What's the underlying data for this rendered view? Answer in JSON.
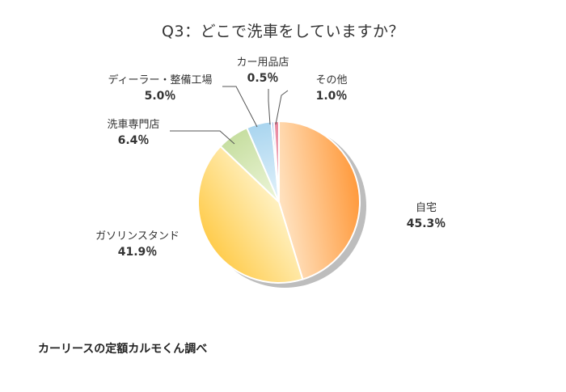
{
  "chart_data": {
    "type": "pie",
    "title": "Q3：どこで洗車をしていますか？",
    "slices": [
      {
        "label": "自宅",
        "value": 45.3,
        "display": "45.3％",
        "color_light": "#ffe3c2",
        "color_dark": "#ff9a3c"
      },
      {
        "label": "ガソリンスタンド",
        "value": 41.9,
        "display": "41.9％",
        "color_light": "#fff1c2",
        "color_dark": "#ffcc4d"
      },
      {
        "label": "洗車専門店",
        "value": 6.4,
        "display": "6.4％",
        "color_light": "#eef6da",
        "color_dark": "#c6dea0"
      },
      {
        "label": "ディーラー・整備工場",
        "value": 5.0,
        "display": "5.0％",
        "color_light": "#e3f2fb",
        "color_dark": "#a9d5ef"
      },
      {
        "label": "カー用品店",
        "value": 0.5,
        "display": "0.5％",
        "color_light": "#dde8f8",
        "color_dark": "#9cb6e6"
      },
      {
        "label": "その他",
        "value": 1.0,
        "display": "1.0％",
        "color_light": "#f6c3cf",
        "color_dark": "#e8859d"
      }
    ]
  },
  "credit": "カーリースの定額カルモくん調べ"
}
